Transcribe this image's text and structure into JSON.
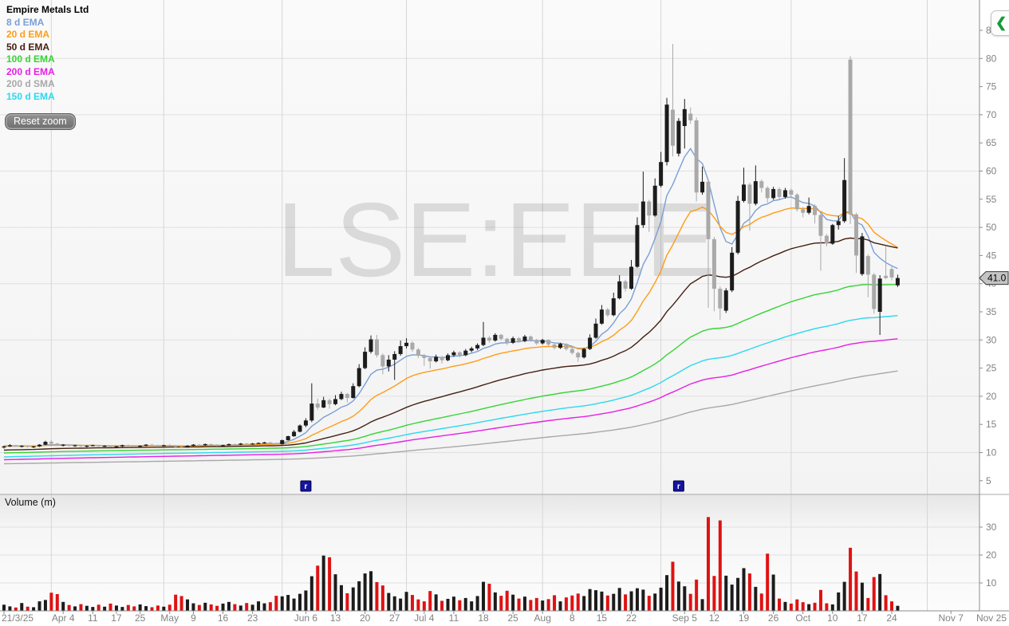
{
  "legend": {
    "title": "Empire Metals Ltd",
    "items": [
      {
        "label": "8 d EMA",
        "type": "ema",
        "period": 8,
        "seed": null,
        "color": "#7a9fd6"
      },
      {
        "label": "20 d EMA",
        "type": "ema",
        "period": 20,
        "seed": 11.2,
        "color": "#ff9d18"
      },
      {
        "label": "50 d EMA",
        "type": "ema",
        "period": 50,
        "seed": 10.4,
        "color": "#44201356"
      },
      {
        "label": "100 d EMA",
        "type": "ema",
        "period": 100,
        "seed": 9.9,
        "color": "#35d435"
      },
      {
        "label": "200 d EMA",
        "type": "ema",
        "period": 200,
        "seed": 8.7,
        "color": "#e81ee8"
      },
      {
        "label": "200 d SMA",
        "type": "sma",
        "period": 200,
        "seed": 8.0,
        "color": "#a8a8a8"
      },
      {
        "label": "150 d EMA",
        "type": "ema",
        "period": 150,
        "seed": 9.2,
        "color": "#2cd8f0"
      }
    ]
  },
  "controls": {
    "reset_zoom_label": "Reset zoom",
    "collapse_glyph": "❮"
  },
  "price_tag": "41.0",
  "flags": [
    {
      "label": "r",
      "day": 51
    },
    {
      "label": "r",
      "day": 114
    }
  ],
  "colors": {
    "candle_up": "#1c1c1c",
    "candle_down": "#a9a9a9",
    "volume_up": "#1c1c1c",
    "volume_down": "#e01212",
    "axis_text": "#828282",
    "axis_line": "#8c8c8c",
    "grid": "#e0e0e0",
    "month_grid": "#d6d6d6",
    "watermark": "#000000",
    "flag_bg": "#1414a0",
    "tag_bg": "#c4c4c4"
  },
  "chart_data": {
    "type": "candlestick+volume",
    "title": "Empire Metals Ltd",
    "watermark": "LSE:EEE",
    "legend_position": "top-left",
    "grid": true,
    "y_axis": {
      "side": "right",
      "ticks": [
        5,
        10,
        15,
        20,
        25,
        30,
        35,
        40,
        45,
        50,
        55,
        60,
        65,
        70,
        75,
        80,
        85
      ],
      "range": [
        3.5,
        87
      ],
      "last_price": 41.0
    },
    "volume_axis": {
      "label": "Volume (m)",
      "ticks": [
        10,
        20,
        30
      ],
      "range": [
        0,
        41
      ]
    },
    "x_ticks": [
      {
        "label": "21/3/25",
        "day": 0
      },
      {
        "label": "Apr 4",
        "day": 10
      },
      {
        "label": "11",
        "day": 15
      },
      {
        "label": "17",
        "day": 19
      },
      {
        "label": "25",
        "day": 23
      },
      {
        "label": "May",
        "day": 28
      },
      {
        "label": "9",
        "day": 32
      },
      {
        "label": "16",
        "day": 37
      },
      {
        "label": "23",
        "day": 42
      },
      {
        "label": "Jun 6",
        "day": 51
      },
      {
        "label": "13",
        "day": 56
      },
      {
        "label": "20",
        "day": 61
      },
      {
        "label": "27",
        "day": 66
      },
      {
        "label": "Jul 4",
        "day": 71
      },
      {
        "label": "11",
        "day": 76
      },
      {
        "label": "18",
        "day": 81
      },
      {
        "label": "25",
        "day": 86
      },
      {
        "label": "Aug",
        "day": 91
      },
      {
        "label": "8",
        "day": 96
      },
      {
        "label": "15",
        "day": 101
      },
      {
        "label": "22",
        "day": 106
      },
      {
        "label": "Sep 5",
        "day": 115
      },
      {
        "label": "12",
        "day": 120
      },
      {
        "label": "19",
        "day": 125
      },
      {
        "label": "26",
        "day": 130
      },
      {
        "label": "Oct",
        "day": 135
      },
      {
        "label": "10",
        "day": 140
      },
      {
        "label": "17",
        "day": 145
      },
      {
        "label": "24",
        "day": 150
      },
      {
        "label": "Nov 7",
        "day": 160
      },
      {
        "label": "Nov 25",
        "day": 167
      }
    ],
    "month_grid_days": [
      8,
      27,
      47,
      68,
      91,
      111,
      133,
      156
    ],
    "candles": [
      [
        10.9,
        11.2,
        10.7,
        11.1
      ],
      [
        11.1,
        11.5,
        11.0,
        11.3
      ],
      [
        11.3,
        11.4,
        11.0,
        11.1
      ],
      [
        11.1,
        11.3,
        10.9,
        11.2
      ],
      [
        11.2,
        11.3,
        10.9,
        11.0
      ],
      [
        11.0,
        11.2,
        10.8,
        11.1
      ],
      [
        11.1,
        11.5,
        11.0,
        11.4
      ],
      [
        11.4,
        12.1,
        11.3,
        11.9
      ],
      [
        11.9,
        12.2,
        11.5,
        11.6
      ],
      [
        11.6,
        11.7,
        11.2,
        11.3
      ],
      [
        11.3,
        11.5,
        11.1,
        11.4
      ],
      [
        11.4,
        11.5,
        11.1,
        11.2
      ],
      [
        11.2,
        11.4,
        11.0,
        11.3
      ],
      [
        11.3,
        11.4,
        11.0,
        11.1
      ],
      [
        11.1,
        11.3,
        10.9,
        11.2
      ],
      [
        11.2,
        11.4,
        11.1,
        11.3
      ],
      [
        11.3,
        11.4,
        11.0,
        11.1
      ],
      [
        11.1,
        11.3,
        11.0,
        11.2
      ],
      [
        11.2,
        11.3,
        10.9,
        11.0
      ],
      [
        11.0,
        11.2,
        10.8,
        11.1
      ],
      [
        11.1,
        11.4,
        11.0,
        11.3
      ],
      [
        11.3,
        11.4,
        11.1,
        11.2
      ],
      [
        11.2,
        11.3,
        10.9,
        11.1
      ],
      [
        11.1,
        11.3,
        11.0,
        11.2
      ],
      [
        11.2,
        11.5,
        11.1,
        11.4
      ],
      [
        11.4,
        11.5,
        11.2,
        11.3
      ],
      [
        11.3,
        11.4,
        11.0,
        11.2
      ],
      [
        11.2,
        11.4,
        11.1,
        11.3
      ],
      [
        11.3,
        11.5,
        11.1,
        11.2
      ],
      [
        11.2,
        11.3,
        10.9,
        11.0
      ],
      [
        11.0,
        11.2,
        10.8,
        10.9
      ],
      [
        10.9,
        11.3,
        10.9,
        11.2
      ],
      [
        11.2,
        11.5,
        11.1,
        11.4
      ],
      [
        11.4,
        11.5,
        11.2,
        11.3
      ],
      [
        11.3,
        11.6,
        11.2,
        11.5
      ],
      [
        11.5,
        11.6,
        11.3,
        11.4
      ],
      [
        11.4,
        11.5,
        11.1,
        11.2
      ],
      [
        11.2,
        11.4,
        11.1,
        11.3
      ],
      [
        11.3,
        11.6,
        11.2,
        11.5
      ],
      [
        11.5,
        11.6,
        11.3,
        11.4
      ],
      [
        11.4,
        11.7,
        11.3,
        11.6
      ],
      [
        11.6,
        11.7,
        11.4,
        11.5
      ],
      [
        11.5,
        11.7,
        11.4,
        11.6
      ],
      [
        11.6,
        11.8,
        11.5,
        11.7
      ],
      [
        11.7,
        11.9,
        11.6,
        11.8
      ],
      [
        11.8,
        11.9,
        11.5,
        11.6
      ],
      [
        11.6,
        11.8,
        11.4,
        11.5
      ],
      [
        11.5,
        12.3,
        11.4,
        12.2
      ],
      [
        12.2,
        13.0,
        12.1,
        12.9
      ],
      [
        12.9,
        14.0,
        12.8,
        13.7
      ],
      [
        13.7,
        15.0,
        13.6,
        14.8
      ],
      [
        14.8,
        16.1,
        14.5,
        15.7
      ],
      [
        15.7,
        22.3,
        15.4,
        18.7
      ],
      [
        18.7,
        19.6,
        17.6,
        18.0
      ],
      [
        18.0,
        19.9,
        17.9,
        19.3
      ],
      [
        19.3,
        19.6,
        17.8,
        18.6
      ],
      [
        18.6,
        20.2,
        18.4,
        19.5
      ],
      [
        19.5,
        20.8,
        19.3,
        20.4
      ],
      [
        20.4,
        20.6,
        18.9,
        19.7
      ],
      [
        19.7,
        22.3,
        19.6,
        21.8
      ],
      [
        21.8,
        25.7,
        21.6,
        25.0
      ],
      [
        25.0,
        28.7,
        24.8,
        27.9
      ],
      [
        27.9,
        30.8,
        27.6,
        30.1
      ],
      [
        30.1,
        30.9,
        26.9,
        27.3
      ],
      [
        27.3,
        27.6,
        23.9,
        25.3
      ],
      [
        25.3,
        27.3,
        24.4,
        26.5
      ],
      [
        26.5,
        28.0,
        22.9,
        27.5
      ],
      [
        27.5,
        29.9,
        27.2,
        28.9
      ],
      [
        28.9,
        30.3,
        28.5,
        29.5
      ],
      [
        29.5,
        29.8,
        27.9,
        28.3
      ],
      [
        28.3,
        28.6,
        26.8,
        27.2
      ],
      [
        27.2,
        27.5,
        25.4,
        26.8
      ],
      [
        26.8,
        27.0,
        24.9,
        26.2
      ],
      [
        26.2,
        27.4,
        26.0,
        27.0
      ],
      [
        27.0,
        27.2,
        25.8,
        26.4
      ],
      [
        26.4,
        27.6,
        26.2,
        27.3
      ],
      [
        27.3,
        28.1,
        27.0,
        27.8
      ],
      [
        27.8,
        28.0,
        26.9,
        27.3
      ],
      [
        27.3,
        28.4,
        27.1,
        28.1
      ],
      [
        28.1,
        28.8,
        27.8,
        28.5
      ],
      [
        28.5,
        29.4,
        28.2,
        29.1
      ],
      [
        29.1,
        33.2,
        28.9,
        30.4
      ],
      [
        30.4,
        30.7,
        29.5,
        29.9
      ],
      [
        29.9,
        31.2,
        29.7,
        30.9
      ],
      [
        30.9,
        31.1,
        29.9,
        30.2
      ],
      [
        30.2,
        30.4,
        29.1,
        29.5
      ],
      [
        29.5,
        30.6,
        29.3,
        30.3
      ],
      [
        30.3,
        30.5,
        29.5,
        29.8
      ],
      [
        29.8,
        30.9,
        29.6,
        30.6
      ],
      [
        30.6,
        30.8,
        29.7,
        30.0
      ],
      [
        30.0,
        30.2,
        29.1,
        29.4
      ],
      [
        29.4,
        30.2,
        29.2,
        30.0
      ],
      [
        30.0,
        30.1,
        28.9,
        29.2
      ],
      [
        29.2,
        29.4,
        28.3,
        28.6
      ],
      [
        28.6,
        29.5,
        28.4,
        29.3
      ],
      [
        29.3,
        29.4,
        28.1,
        28.4
      ],
      [
        28.4,
        28.6,
        27.4,
        27.7
      ],
      [
        27.7,
        27.9,
        26.1,
        26.9
      ],
      [
        26.9,
        28.6,
        26.7,
        28.4
      ],
      [
        28.4,
        31.0,
        28.2,
        30.4
      ],
      [
        30.4,
        33.8,
        30.2,
        32.9
      ],
      [
        32.9,
        36.2,
        32.7,
        35.4
      ],
      [
        35.4,
        35.7,
        34.1,
        34.4
      ],
      [
        34.4,
        38.4,
        34.2,
        37.4
      ],
      [
        37.4,
        41.5,
        37.2,
        40.4
      ],
      [
        40.4,
        40.7,
        38.6,
        39.1
      ],
      [
        39.1,
        44.2,
        38.9,
        43.0
      ],
      [
        43.0,
        51.8,
        42.8,
        50.4
      ],
      [
        50.4,
        59.9,
        49.9,
        54.6
      ],
      [
        54.6,
        54.9,
        49.2,
        52.1
      ],
      [
        52.1,
        58.7,
        51.9,
        57.4
      ],
      [
        57.4,
        63.4,
        57.1,
        61.6
      ],
      [
        61.6,
        73.0,
        61.0,
        71.8
      ],
      [
        70.9,
        82.6,
        62.6,
        64.5
      ],
      [
        63.1,
        69.4,
        62.6,
        68.9
      ],
      [
        68.0,
        72.8,
        64.0,
        71.0
      ],
      [
        70.2,
        71.3,
        68.4,
        69.0
      ],
      [
        69.0,
        69.5,
        54.6,
        56.2
      ],
      [
        56.2,
        60.8,
        55.8,
        58.1
      ],
      [
        58.1,
        58.4,
        35.7,
        47.9
      ],
      [
        47.9,
        48.3,
        35.1,
        39.1
      ],
      [
        39.1,
        39.5,
        33.6,
        35.6
      ],
      [
        35.2,
        39.2,
        34.8,
        38.8
      ],
      [
        38.8,
        46.5,
        38.5,
        45.5
      ],
      [
        45.5,
        55.6,
        45.2,
        54.7
      ],
      [
        54.7,
        60.6,
        54.4,
        57.6
      ],
      [
        57.6,
        57.9,
        49.4,
        54.2
      ],
      [
        54.2,
        61.0,
        53.9,
        58.2
      ],
      [
        58.2,
        58.5,
        56.2,
        57.0
      ],
      [
        57.0,
        57.3,
        54.4,
        55.2
      ],
      [
        55.2,
        57.2,
        54.9,
        56.8
      ],
      [
        56.8,
        57.1,
        54.9,
        55.4
      ],
      [
        55.4,
        57.0,
        55.1,
        56.6
      ],
      [
        56.6,
        56.9,
        55.2,
        55.8
      ],
      [
        55.8,
        56.1,
        52.8,
        53.2
      ],
      [
        53.2,
        53.6,
        51.8,
        52.6
      ],
      [
        52.6,
        55.3,
        52.3,
        53.8
      ],
      [
        53.8,
        54.1,
        50.7,
        52.2
      ],
      [
        52.2,
        52.5,
        42.3,
        48.5
      ],
      [
        48.5,
        48.8,
        46.6,
        47.1
      ],
      [
        47.1,
        50.6,
        46.9,
        50.4
      ],
      [
        50.4,
        52.0,
        49.6,
        51.1
      ],
      [
        51.1,
        62.3,
        50.8,
        58.4
      ],
      [
        79.8,
        80.4,
        50.6,
        52.3
      ],
      [
        52.3,
        52.6,
        41.9,
        45.0
      ],
      [
        41.7,
        49.0,
        41.4,
        48.4
      ],
      [
        44.9,
        45.2,
        37.6,
        41.6
      ],
      [
        41.6,
        41.9,
        34.7,
        35.5
      ],
      [
        35.0,
        41.5,
        30.9,
        40.9
      ],
      [
        41.4,
        46.6,
        40.8,
        41.0
      ],
      [
        42.6,
        43.0,
        40.6,
        41.1
      ],
      [
        39.7,
        41.6,
        39.4,
        41.0
      ]
    ],
    "volumes": [
      2.2,
      1.6,
      1.2,
      2.8,
      1.5,
      1.3,
      3.4,
      3.9,
      6.5,
      6.0,
      3.2,
      2.1,
      1.6,
      2.4,
      1.8,
      1.4,
      2.2,
      1.5,
      2.6,
      1.9,
      1.4,
      2.1,
      1.6,
      2.3,
      1.7,
      1.3,
      1.9,
      1.5,
      2.2,
      5.8,
      5.3,
      4.1,
      2.7,
      2.1,
      2.9,
      2.3,
      1.8,
      2.6,
      3.2,
      2.4,
      1.9,
      2.8,
      2.2,
      3.4,
      2.7,
      3.1,
      5.4,
      5.2,
      5.7,
      4.4,
      6.1,
      7.3,
      12.4,
      16.2,
      19.8,
      19.2,
      13.1,
      9.2,
      6.3,
      8.4,
      10.6,
      13.4,
      14.2,
      10.3,
      9.1,
      6.4,
      5.2,
      4.4,
      6.8,
      5.7,
      4.1,
      3.4,
      7.1,
      5.9,
      3.6,
      4.3,
      5.1,
      3.8,
      4.6,
      3.4,
      5.3,
      10.4,
      9.7,
      6.6,
      5.4,
      7.2,
      5.8,
      4.4,
      5.1,
      3.9,
      4.6,
      3.7,
      4.2,
      5.6,
      3.4,
      4.8,
      5.5,
      6.2,
      5.3,
      7.8,
      7.4,
      6.9,
      5.5,
      6.1,
      8.2,
      5.9,
      7.0,
      8.1,
      7.6,
      5.4,
      6.2,
      8.3,
      12.8,
      17.6,
      10.5,
      8.8,
      6.1,
      11.2,
      4.2,
      33.6,
      12.5,
      32.4,
      12.6,
      9.4,
      11.8,
      15.3,
      13.4,
      8.6,
      6.2,
      20.5,
      13.0,
      4.4,
      3.2,
      2.6,
      4.1,
      3.1,
      2.4,
      2.9,
      7.5,
      2.7,
      2.3,
      6.6,
      10.4,
      22.6,
      14.1,
      10.1,
      4.6,
      12.1,
      13.2,
      5.6,
      3.4,
      1.8
    ]
  }
}
